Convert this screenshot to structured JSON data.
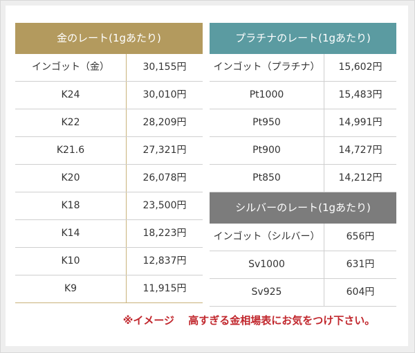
{
  "gold": {
    "title": "金のレート(1gあたり)",
    "rows": [
      [
        "インゴット（金）",
        "30,155円"
      ],
      [
        "K24",
        "30,010円"
      ],
      [
        "K22",
        "28,209円"
      ],
      [
        "K21.6",
        "27,321円"
      ],
      [
        "K20",
        "26,078円"
      ],
      [
        "K18",
        "23,500円"
      ],
      [
        "K14",
        "18,223円"
      ],
      [
        "K10",
        "12,837円"
      ],
      [
        "K9",
        "11,915円"
      ]
    ]
  },
  "platinum": {
    "title": "プラチナのレート(1gあたり)",
    "rows": [
      [
        "インゴット（プラチナ）",
        "15,602円"
      ],
      [
        "Pt1000",
        "15,483円"
      ],
      [
        "Pt950",
        "14,991円"
      ],
      [
        "Pt900",
        "14,727円"
      ],
      [
        "Pt850",
        "14,212円"
      ]
    ]
  },
  "silver": {
    "title": "シルバーのレート(1gあたり)",
    "rows": [
      [
        "インゴット（シルバー）",
        "656円"
      ],
      [
        "Sv1000",
        "631円"
      ],
      [
        "Sv925",
        "604円"
      ]
    ]
  },
  "note": "※イメージ　 高すぎる金相場表にお気をつけ下さい。"
}
